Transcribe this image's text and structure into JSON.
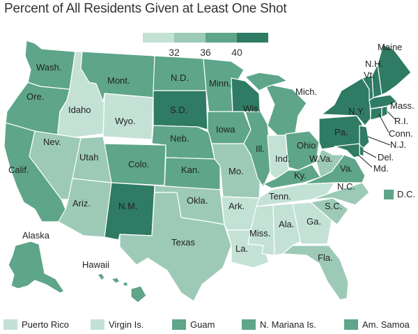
{
  "title": "Percent of All Residents Given at Least One Shot",
  "colors": {
    "c1": "#c4e1d6",
    "c2": "#9ccab7",
    "c3": "#5ea58a",
    "c4": "#2f7b64",
    "stroke": "#ffffff"
  },
  "legend": {
    "ticks": [
      "32",
      "36",
      "40"
    ]
  },
  "states": {
    "wa": "Wash.",
    "or": "Ore.",
    "ca": "Calif.",
    "id": "Idaho",
    "nv": "Nev.",
    "mt": "Mont.",
    "wy": "Wyo.",
    "ut": "Utah",
    "az": "Ariz.",
    "co": "Colo.",
    "nm": "N.M.",
    "nd": "N.D.",
    "sd": "S.D.",
    "ne": "Neb.",
    "ks": "Kan.",
    "ok": "Okla.",
    "tx": "Texas",
    "mn": "Minn.",
    "ia": "Iowa",
    "mo": "Mo.",
    "ar": "Ark.",
    "la": "La.",
    "wi": "Wis.",
    "il": "Ill.",
    "mi": "Mich.",
    "in": "Ind.",
    "oh": "Ohio",
    "ky": "Ky.",
    "tn": "Tenn.",
    "ms": "Miss.",
    "al": "Ala.",
    "ga": "Ga.",
    "fl": "Fla.",
    "sc": "S.C.",
    "nc": "N.C.",
    "va": "Va.",
    "wv": "W.Va.",
    "pa": "Pa.",
    "ny": "N.Y.",
    "me": "Maine",
    "nh": "N.H.",
    "vt": "Vt.",
    "ma": "Mass.",
    "ri": "R.I.",
    "ct": "Conn.",
    "nj": "N.J.",
    "de": "Del.",
    "md": "Md.",
    "dc": "D.C.",
    "ak": "Alaska",
    "hi": "Hawaii"
  },
  "territories": [
    {
      "name": "Puerto Rico",
      "color": "#c4e1d6"
    },
    {
      "name": "Virgin Is.",
      "color": "#c4e1d6"
    },
    {
      "name": "Guam",
      "color": "#5ea58a"
    },
    {
      "name": "N. Mariana Is.",
      "color": "#5ea58a"
    },
    {
      "name": "Am. Samoa",
      "color": "#5ea58a"
    }
  ]
}
